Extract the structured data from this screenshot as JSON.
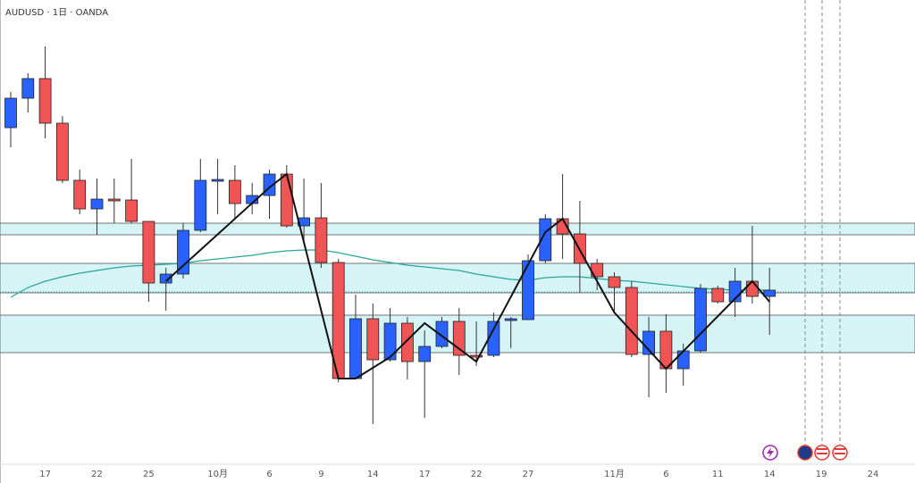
{
  "chart_data": {
    "type": "candlestick",
    "title": "AUDUSD · 1日 · OANDA",
    "categories": [
      null,
      null,
      "17",
      null,
      null,
      "22",
      null,
      null,
      "25",
      null,
      null,
      null,
      "10月",
      null,
      null,
      "6",
      null,
      null,
      "9",
      null,
      null,
      "14",
      null,
      null,
      "17",
      null,
      null,
      "22",
      null,
      null,
      "27",
      null,
      null,
      null,
      null,
      "11月",
      null,
      null,
      "6",
      null,
      null,
      "11",
      null,
      null,
      "14",
      null,
      null,
      "19",
      null,
      null,
      "24",
      null,
      null
    ],
    "open": [
      0.6857,
      0.689,
      0.6912,
      0.6862,
      0.6798,
      0.6766,
      0.6777,
      0.6776,
      0.6752,
      0.6683,
      0.6693,
      0.6742,
      0.6797,
      0.6798,
      0.6772,
      0.6781,
      0.6805,
      0.6747,
      0.6756,
      0.6706,
      0.6576,
      0.6643,
      0.6597,
      0.6638,
      0.6595,
      0.6612,
      0.664,
      0.6602,
      0.6602,
      0.6641,
      0.6642,
      0.6708,
      0.6755,
      0.6738,
      0.6705,
      0.669,
      0.6678,
      0.6603,
      0.6629,
      0.6587,
      0.6607,
      0.6677,
      0.6662,
      0.6685,
      0.6668,
      null,
      null,
      null,
      null,
      null,
      null,
      null,
      null
    ],
    "high": [
      0.6897,
      0.6918,
      0.6948,
      0.687,
      0.681,
      0.68,
      0.68,
      0.6822,
      0.6752,
      0.67,
      0.675,
      0.6822,
      0.6822,
      0.6815,
      0.6795,
      0.681,
      0.6815,
      0.68,
      0.6795,
      0.671,
      0.667,
      0.666,
      0.6655,
      0.6645,
      0.663,
      0.6645,
      0.6655,
      0.664,
      0.665,
      0.6645,
      0.6715,
      0.676,
      0.6805,
      0.6775,
      0.671,
      0.6695,
      0.6685,
      0.6645,
      0.6648,
      0.6615,
      0.6682,
      0.668,
      0.67,
      0.6747,
      0.67,
      null,
      null,
      null,
      null,
      null,
      null,
      null,
      null
    ],
    "low": [
      0.6835,
      0.6874,
      0.6845,
      0.6795,
      0.676,
      0.6737,
      0.675,
      0.675,
      0.6662,
      0.6652,
      0.6688,
      0.674,
      0.676,
      0.6755,
      0.676,
      0.6755,
      0.6745,
      0.673,
      0.67,
      0.6572,
      0.6576,
      0.6525,
      0.6595,
      0.6575,
      0.6532,
      0.661,
      0.658,
      0.659,
      0.66,
      0.661,
      0.6642,
      0.6705,
      0.671,
      0.6672,
      0.6675,
      0.665,
      0.66,
      0.6555,
      0.656,
      0.6568,
      0.6605,
      0.666,
      0.6645,
      0.666,
      0.6625,
      null,
      null,
      null,
      null,
      null,
      null,
      null,
      null
    ],
    "close": [
      0.689,
      0.6912,
      0.6862,
      0.6798,
      0.6766,
      0.6777,
      0.6775,
      0.6752,
      0.6683,
      0.6693,
      0.6742,
      0.6798,
      0.6799,
      0.6772,
      0.6781,
      0.6805,
      0.6747,
      0.6756,
      0.6706,
      0.6576,
      0.6643,
      0.6597,
      0.6638,
      0.6595,
      0.6612,
      0.664,
      0.6602,
      0.66,
      0.664,
      0.6643,
      0.6708,
      0.6755,
      0.6738,
      0.6705,
      0.669,
      0.6678,
      0.6603,
      0.6629,
      0.6587,
      0.6607,
      0.6677,
      0.6662,
      0.6685,
      0.6668,
      0.6675,
      null,
      null,
      null,
      null,
      null,
      null,
      null,
      null
    ],
    "up_color": "#2962ff",
    "down_color": "#f05454",
    "ma": {
      "color": "#26a69a",
      "values": [
        0.6667,
        0.6678,
        0.6685,
        0.669,
        0.6694,
        0.6697,
        0.67,
        0.6702,
        0.6703,
        0.6704,
        0.6705,
        0.6708,
        0.671,
        0.6712,
        0.6714,
        0.6717,
        0.6719,
        0.672,
        0.672,
        0.6717,
        0.6713,
        0.6709,
        0.6706,
        0.6703,
        0.6701,
        0.6699,
        0.6697,
        0.6693,
        0.669,
        0.6687,
        0.6686,
        0.6689,
        0.669,
        0.669,
        0.6688,
        0.6686,
        0.6685,
        0.6683,
        0.6681,
        0.6679,
        0.6677,
        0.6676,
        0.6675,
        0.6675,
        0.6675,
        null,
        null,
        null,
        null,
        null,
        null,
        null,
        null
      ]
    },
    "zigzag": {
      "color": "#111111",
      "x": [
        9,
        15,
        16,
        19,
        20,
        22,
        24,
        27,
        31,
        32,
        35,
        38,
        43,
        44
      ],
      "values": [
        0.6685,
        0.679,
        0.6805,
        0.6576,
        0.6576,
        0.66,
        0.6638,
        0.6595,
        0.674,
        0.6755,
        0.665,
        0.6587,
        0.6685,
        0.6662
      ]
    },
    "zones": [
      [
        0.675,
        0.6737
      ],
      [
        0.6705,
        0.6672
      ],
      [
        0.6647,
        0.6605
      ]
    ],
    "zone_color": "#d6f3f5",
    "price_line": 0.6673,
    "ylim": [
      0.648,
      0.7
    ]
  }
}
